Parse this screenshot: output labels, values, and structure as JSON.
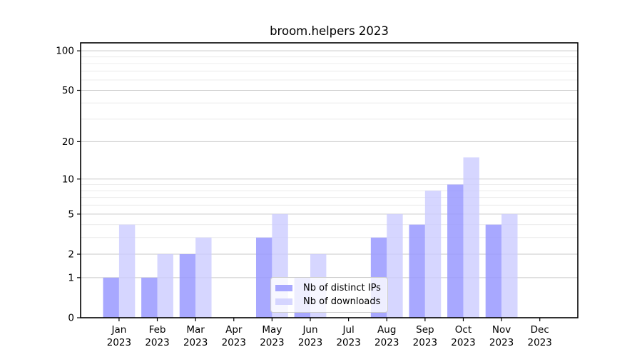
{
  "figure": {
    "title": "broom.helpers 2023",
    "background": "#ffffff"
  },
  "chart_data": {
    "type": "bar",
    "title": "broom.helpers 2023",
    "year_label": "2023",
    "categories": [
      "Jan",
      "Feb",
      "Mar",
      "Apr",
      "May",
      "Jun",
      "Jul",
      "Aug",
      "Sep",
      "Oct",
      "Nov",
      "Dec"
    ],
    "series": [
      {
        "name": "Nb of distinct IPs",
        "color": "#9999ff",
        "opacity": 0.85,
        "values": [
          1,
          1,
          2,
          0,
          3,
          1,
          0,
          3,
          4,
          9,
          4,
          0
        ]
      },
      {
        "name": "Nb of downloads",
        "color": "#ccccff",
        "opacity": 0.8,
        "values": [
          4,
          2,
          3,
          0,
          5,
          2,
          0,
          5,
          8,
          15,
          5,
          0
        ]
      }
    ],
    "xlabel": "",
    "ylabel": "",
    "yscale": "log1p",
    "yticks": [
      0,
      1,
      2,
      5,
      10,
      20,
      50,
      100
    ],
    "minor_yticks": [
      3,
      4,
      6,
      7,
      8,
      9,
      30,
      40,
      60,
      70,
      80,
      90
    ],
    "ylim": [
      0,
      115
    ],
    "grid": true,
    "legend": {
      "position": "lower-center",
      "labels": [
        "Nb of distinct IPs",
        "Nb of downloads"
      ]
    },
    "colors": {
      "major_grid": "#c9c9c9",
      "minor_grid": "#ececec",
      "frame": "#000000"
    }
  }
}
